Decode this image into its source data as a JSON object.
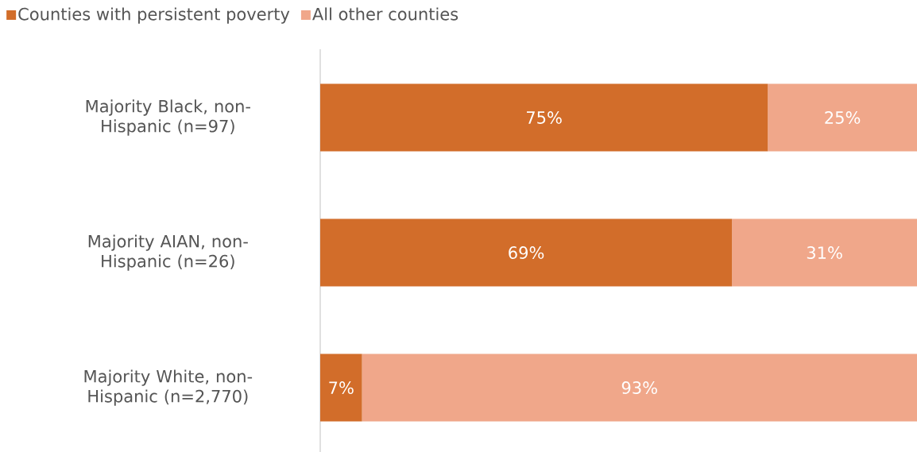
{
  "chart_data": {
    "type": "bar",
    "orientation": "horizontal",
    "stacked": true,
    "legend": "top left",
    "tick_labels": "y",
    "xlim": [
      0,
      100
    ],
    "categories": [
      "Majority Black, non-Hispanic (n=97)",
      "Majority AIAN, non-Hispanic (n=26)",
      "Majority White, non-Hispanic (n=2,770)"
    ],
    "series": [
      {
        "name": "Counties with persistent poverty",
        "color": "#d26d2a",
        "values": [
          75,
          69,
          7
        ],
        "value_labels": [
          "75%",
          "69%",
          "7%"
        ]
      },
      {
        "name": "All other counties",
        "color": "#f0a78a",
        "values": [
          25,
          31,
          93
        ],
        "value_labels": [
          "25%",
          "31%",
          "93%"
        ]
      }
    ]
  }
}
